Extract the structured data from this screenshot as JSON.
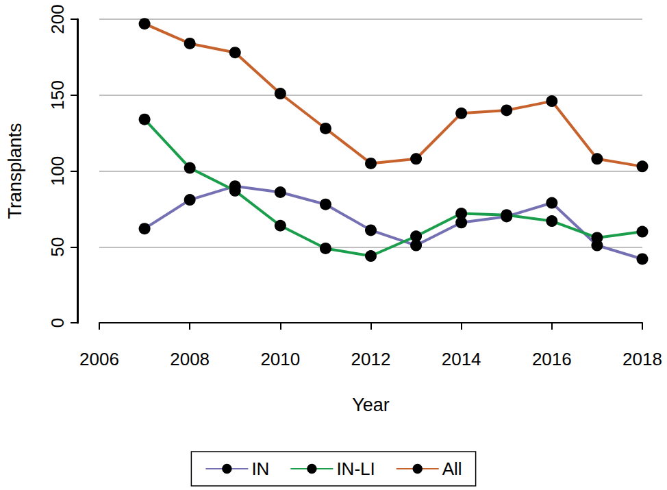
{
  "chart_data": {
    "type": "line",
    "x_label": "Year",
    "y_label": "Transplants",
    "x": [
      2007,
      2008,
      2009,
      2010,
      2011,
      2012,
      2013,
      2014,
      2015,
      2016,
      2017,
      2018
    ],
    "series": [
      {
        "name": "IN",
        "color": "#7570b3",
        "marker": "circle",
        "values": [
          62,
          81,
          90,
          86,
          78,
          61,
          51,
          66,
          70,
          79,
          51,
          42
        ]
      },
      {
        "name": "IN-LI",
        "color": "#1b9e4b",
        "marker": "circle",
        "values": [
          134,
          102,
          87,
          64,
          49,
          44,
          57,
          72,
          71,
          67,
          56,
          60
        ]
      },
      {
        "name": "All",
        "color": "#c8622d",
        "marker": "circle",
        "values": [
          197,
          184,
          178,
          151,
          128,
          105,
          108,
          138,
          140,
          146,
          108,
          103
        ]
      }
    ],
    "xlim": [
      2006,
      2018
    ],
    "xticks": [
      2006,
      2008,
      2010,
      2012,
      2014,
      2016,
      2018
    ],
    "ylim": [
      0,
      200
    ],
    "yticks": [
      0,
      50,
      100,
      150,
      200
    ],
    "grid": true,
    "legend": "bottom"
  }
}
